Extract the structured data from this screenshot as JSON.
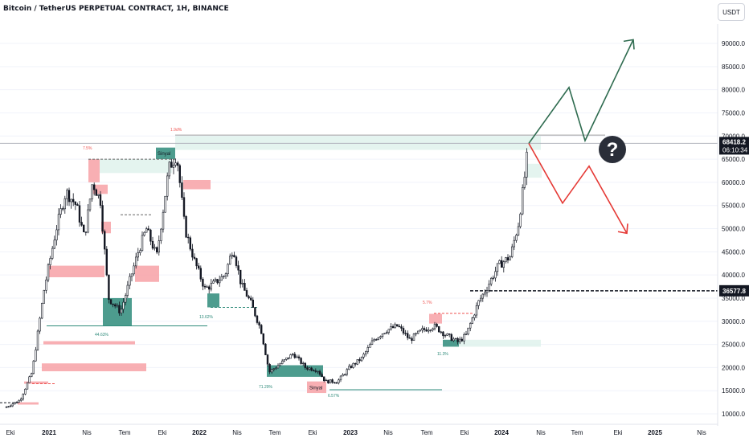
{
  "header": {
    "title": "Bitcoin / TetherUS PERPETUAL CONTRACT, 1H, BINANCE",
    "currency": "USDT"
  },
  "chart_data": {
    "type": "candlestick",
    "symbol": "Bitcoin / TetherUS PERPETUAL CONTRACT",
    "interval": "1H",
    "exchange": "BINANCE",
    "price_axis": {
      "ticks": [
        "10000.0",
        "15000.0",
        "20000.0",
        "25000.0",
        "30000.0",
        "35000.0",
        "40000.0",
        "45000.0",
        "50000.0",
        "55000.0",
        "60000.0",
        "65000.0",
        "70000.0",
        "75000.0",
        "80000.0",
        "85000.0",
        "90000.0"
      ],
      "ylim": [
        10000,
        92000
      ]
    },
    "time_axis": {
      "labels": [
        "Eki",
        "2021",
        "Nis",
        "Tem",
        "Eki",
        "2022",
        "Nis",
        "Tem",
        "Eki",
        "2023",
        "Nis",
        "Tem",
        "Eki",
        "2024",
        "Nis",
        "Tem",
        "Eki",
        "2025",
        "Nis"
      ]
    },
    "last_price": {
      "value": "68418.2",
      "countdown": "06:10:34"
    },
    "level_label": "36577.8",
    "annotations": {
      "question_mark": "?",
      "zone_labels": [
        "Sinyal",
        "Sinyal"
      ],
      "small_values": [
        "7.5%",
        "1.9d%",
        "44.63%",
        "13.62%",
        "71.29%",
        "6.57%",
        "5.7%",
        "11.3%"
      ]
    },
    "price_path": [
      [
        8,
        11500
      ],
      [
        25,
        13000
      ],
      [
        40,
        19000
      ],
      [
        55,
        37000
      ],
      [
        70,
        50000
      ],
      [
        82,
        58000
      ],
      [
        95,
        55000
      ],
      [
        105,
        48000
      ],
      [
        115,
        60000
      ],
      [
        125,
        56000
      ],
      [
        135,
        35000
      ],
      [
        150,
        32000
      ],
      [
        160,
        38000
      ],
      [
        172,
        45000
      ],
      [
        182,
        50000
      ],
      [
        195,
        44000
      ],
      [
        210,
        63000
      ],
      [
        220,
        66000
      ],
      [
        230,
        50000
      ],
      [
        242,
        43000
      ],
      [
        255,
        37000
      ],
      [
        265,
        38000
      ],
      [
        280,
        40000
      ],
      [
        290,
        46000
      ],
      [
        300,
        38000
      ],
      [
        312,
        34000
      ],
      [
        325,
        28000
      ],
      [
        335,
        19000
      ],
      [
        350,
        21000
      ],
      [
        365,
        23000
      ],
      [
        380,
        20000
      ],
      [
        395,
        19500
      ],
      [
        405,
        17000
      ],
      [
        420,
        17000
      ],
      [
        435,
        20000
      ],
      [
        450,
        22000
      ],
      [
        465,
        26000
      ],
      [
        480,
        28000
      ],
      [
        495,
        29000
      ],
      [
        510,
        26000
      ],
      [
        525,
        28000
      ],
      [
        540,
        29000
      ],
      [
        555,
        27000
      ],
      [
        570,
        25500
      ],
      [
        580,
        27000
      ],
      [
        595,
        34000
      ],
      [
        605,
        37000
      ],
      [
        620,
        42000
      ],
      [
        635,
        44000
      ],
      [
        645,
        51000
      ],
      [
        652,
        60000
      ],
      [
        658,
        69000
      ]
    ],
    "projection_up": [
      [
        658,
        68400
      ],
      [
        708,
        80500
      ],
      [
        728,
        69000
      ],
      [
        788,
        90800
      ]
    ],
    "projection_down": [
      [
        658,
        68400
      ],
      [
        700,
        55500
      ],
      [
        733,
        63500
      ],
      [
        780,
        49000
      ]
    ]
  }
}
